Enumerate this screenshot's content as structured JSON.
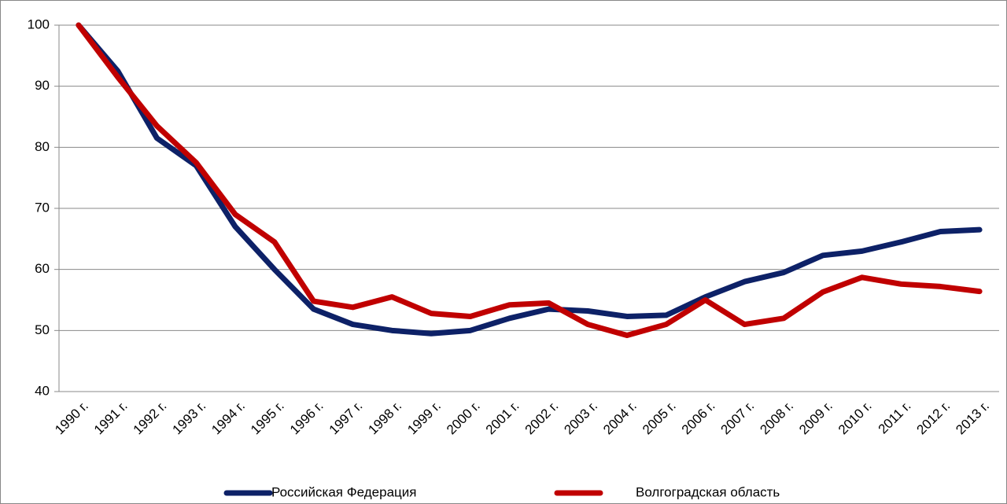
{
  "chart_data": {
    "type": "line",
    "categories": [
      "1990 г.",
      "1991 г.",
      "1992 г.",
      "1993 г.",
      "1994 г.",
      "1995 г.",
      "1996 г.",
      "1997 г.",
      "1998 г.",
      "1999 г.",
      "2000 г.",
      "2001 г.",
      "2002 г.",
      "2003 г.",
      "2004 г.",
      "2005 г.",
      "2006 г.",
      "2007 г.",
      "2008 г.",
      "2009 г.",
      "2010 г.",
      "2011 г.",
      "2012 г.",
      "2013 г."
    ],
    "series": [
      {
        "name": "Российская Федерация",
        "color": "#0d2167",
        "values": [
          100,
          92.5,
          81.5,
          77,
          67,
          60,
          53.5,
          51,
          50,
          49.5,
          50,
          52,
          53.5,
          53.2,
          52.3,
          52.5,
          55.5,
          58,
          59.5,
          62.3,
          63,
          64.5,
          66.2,
          66.5
        ]
      },
      {
        "name": "Волгоградская область",
        "color": "#c00000",
        "values": [
          100,
          91.5,
          83.5,
          77.5,
          69,
          64.5,
          54.8,
          53.8,
          55.5,
          52.8,
          52.3,
          54.2,
          54.5,
          51,
          49.2,
          51,
          55,
          51,
          52,
          56.3,
          58.7,
          57.6,
          57.2,
          56.4
        ]
      }
    ],
    "ylim": [
      40,
      100
    ],
    "yticks": [
      40,
      50,
      60,
      70,
      80,
      90,
      100
    ],
    "grid": true,
    "legend": "bottom"
  }
}
